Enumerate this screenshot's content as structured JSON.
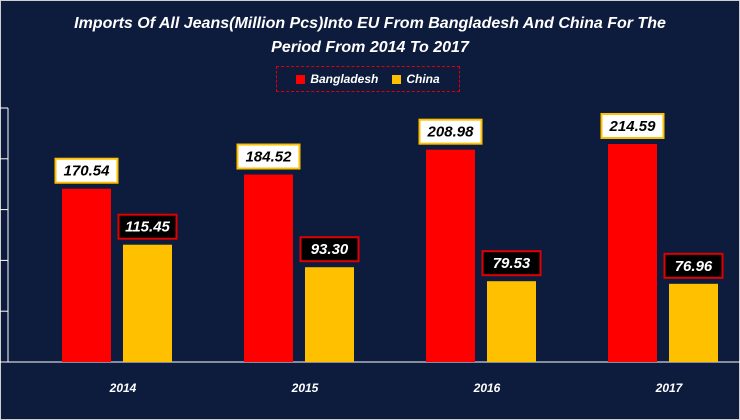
{
  "colors": {
    "background": "#0d1b3d",
    "bangladesh": "#ff0000",
    "china": "#ffc000",
    "text": "#ffffff",
    "legend_border": "#e00000"
  },
  "chart_data": {
    "type": "bar",
    "title": "Imports Of All Jeans(Million Pcs)Into EU From Bangladesh And China For The Period From 2014 To 2017",
    "title_lines": [
      "Imports Of All Jeans(Million Pcs)Into EU From Bangladesh And China For The",
      "Period From 2014 To 2017"
    ],
    "categories": [
      "2014",
      "2015",
      "2016",
      "2017"
    ],
    "series": [
      {
        "name": "Bangladesh",
        "values": [
          170.54,
          184.52,
          208.98,
          214.59
        ],
        "labels": [
          "170.54",
          "184.52",
          "208.98",
          "214.59"
        ]
      },
      {
        "name": "China",
        "values": [
          115.45,
          93.3,
          79.53,
          76.96
        ],
        "labels": [
          "115.45",
          "93.30",
          "79.53",
          "76.96"
        ]
      }
    ],
    "ylim": [
      0,
      250
    ],
    "xlabel": "",
    "ylabel": "",
    "legend_position": "top-center",
    "grid": false
  }
}
